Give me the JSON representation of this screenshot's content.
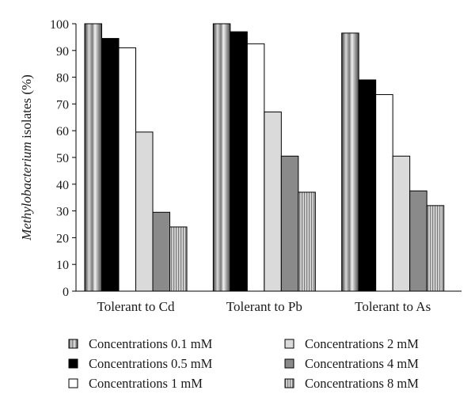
{
  "chart_data": {
    "type": "bar",
    "title": "",
    "xlabel": "",
    "ylabel_italic": "Methylobacterium",
    "ylabel_rest": " isolates (%)",
    "ylim": [
      0,
      100
    ],
    "yticks": [
      0,
      10,
      20,
      30,
      40,
      50,
      60,
      70,
      80,
      90,
      100
    ],
    "categories": [
      "Tolerant to Cd",
      "Tolerant to Pb",
      "Tolerant to As"
    ],
    "series": [
      {
        "name": "Concentrations 0.1 mM",
        "pattern": "gradient",
        "values": [
          100,
          100,
          96.5
        ]
      },
      {
        "name": "Concentrations 0.5 mM",
        "pattern": "solid-black",
        "values": [
          94.5,
          97,
          79
        ]
      },
      {
        "name": "Concentrations 1 mM",
        "pattern": "white",
        "values": [
          91,
          92.5,
          73.5
        ]
      },
      {
        "name": "Concentrations 2 mM",
        "pattern": "light-gray",
        "values": [
          59.5,
          67,
          50.5
        ]
      },
      {
        "name": "Concentrations 4 mM",
        "pattern": "dark-gray",
        "values": [
          29.5,
          50.5,
          37.5
        ]
      },
      {
        "name": "Concentrations 8 mM",
        "pattern": "striped",
        "values": [
          24,
          37,
          32
        ]
      }
    ],
    "legend_position": "bottom"
  }
}
